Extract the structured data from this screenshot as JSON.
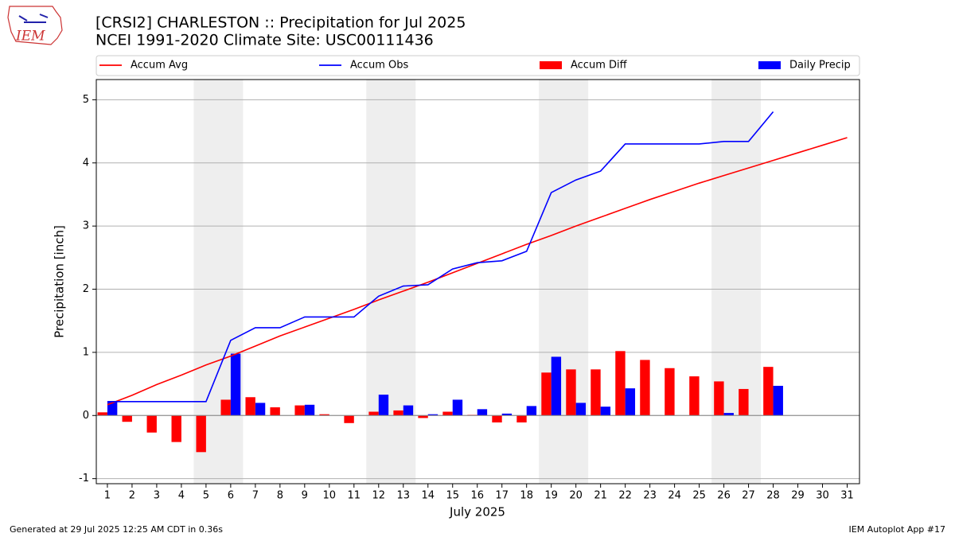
{
  "logo": "IEM",
  "chart_data": {
    "title": "[CRSI2] CHARLESTON :: Precipitation for Jul 2025",
    "subtitle": "NCEI 1991-2020 Climate Site: USC00111436",
    "ylabel": "Precipitation [inch]",
    "xlabel": "July 2025",
    "footer_left": "Generated at 29 Jul 2025 12:25 AM CDT in 0.36s",
    "footer_right": "IEM Autoplot App #17",
    "x": [
      1,
      2,
      3,
      4,
      5,
      6,
      7,
      8,
      9,
      10,
      11,
      12,
      13,
      14,
      15,
      16,
      17,
      18,
      19,
      20,
      21,
      22,
      23,
      24,
      25,
      26,
      27,
      28,
      29,
      30,
      31
    ],
    "xlim": [
      0.55,
      31.5
    ],
    "xticks": [
      1,
      2,
      3,
      4,
      5,
      6,
      7,
      8,
      9,
      10,
      11,
      12,
      13,
      14,
      15,
      16,
      17,
      18,
      19,
      20,
      21,
      22,
      23,
      24,
      25,
      26,
      27,
      28,
      29,
      30,
      31
    ],
    "ylim": [
      -1.08,
      5.32
    ],
    "yticks": [
      -1,
      0,
      1,
      2,
      3,
      4,
      5
    ],
    "grid": true,
    "legend": "top",
    "shaded_spans": [
      [
        4.5,
        6.5
      ],
      [
        11.5,
        13.5
      ],
      [
        18.5,
        20.5
      ],
      [
        25.5,
        27.5
      ]
    ],
    "series": [
      {
        "name": "Accum Avg",
        "type": "line",
        "color": "#ff0000",
        "values": [
          0.17,
          0.32,
          0.49,
          0.64,
          0.8,
          0.94,
          1.1,
          1.26,
          1.4,
          1.54,
          1.68,
          1.83,
          1.97,
          2.11,
          2.26,
          2.41,
          2.56,
          2.71,
          2.85,
          3.0,
          3.14,
          3.28,
          3.42,
          3.55,
          3.68,
          3.8,
          3.92,
          4.04,
          4.16,
          4.28,
          4.4
        ]
      },
      {
        "name": "Accum Obs",
        "type": "line",
        "color": "#0000ff",
        "values": [
          0.22,
          0.22,
          0.22,
          0.22,
          0.22,
          1.19,
          1.39,
          1.39,
          1.56,
          1.56,
          1.56,
          1.89,
          2.05,
          2.07,
          2.32,
          2.42,
          2.45,
          2.6,
          3.53,
          3.73,
          3.87,
          4.3,
          4.3,
          4.3,
          4.3,
          4.34,
          4.34,
          4.81,
          null,
          null,
          null
        ]
      },
      {
        "name": "Accum Diff",
        "type": "bar",
        "color": "#ff0000",
        "offset": -1,
        "values": [
          0.05,
          -0.1,
          -0.27,
          -0.42,
          -0.58,
          0.25,
          0.29,
          0.13,
          0.16,
          0.02,
          -0.12,
          0.06,
          0.08,
          -0.04,
          0.06,
          0.01,
          -0.11,
          -0.11,
          0.68,
          0.73,
          0.73,
          1.02,
          0.88,
          0.75,
          0.62,
          0.54,
          0.42,
          0.77,
          null,
          null,
          null
        ]
      },
      {
        "name": "Daily Precip",
        "type": "bar",
        "color": "#0000ff",
        "offset": 0,
        "values": [
          0.22,
          0,
          0,
          0,
          0,
          0.98,
          0.2,
          0,
          0.17,
          0,
          0,
          0.33,
          0.16,
          0.02,
          0.25,
          0.1,
          0.03,
          0.15,
          0.93,
          0.2,
          0.14,
          0.43,
          0,
          0,
          0,
          0.04,
          0,
          0.47,
          null,
          null,
          null
        ]
      }
    ]
  }
}
